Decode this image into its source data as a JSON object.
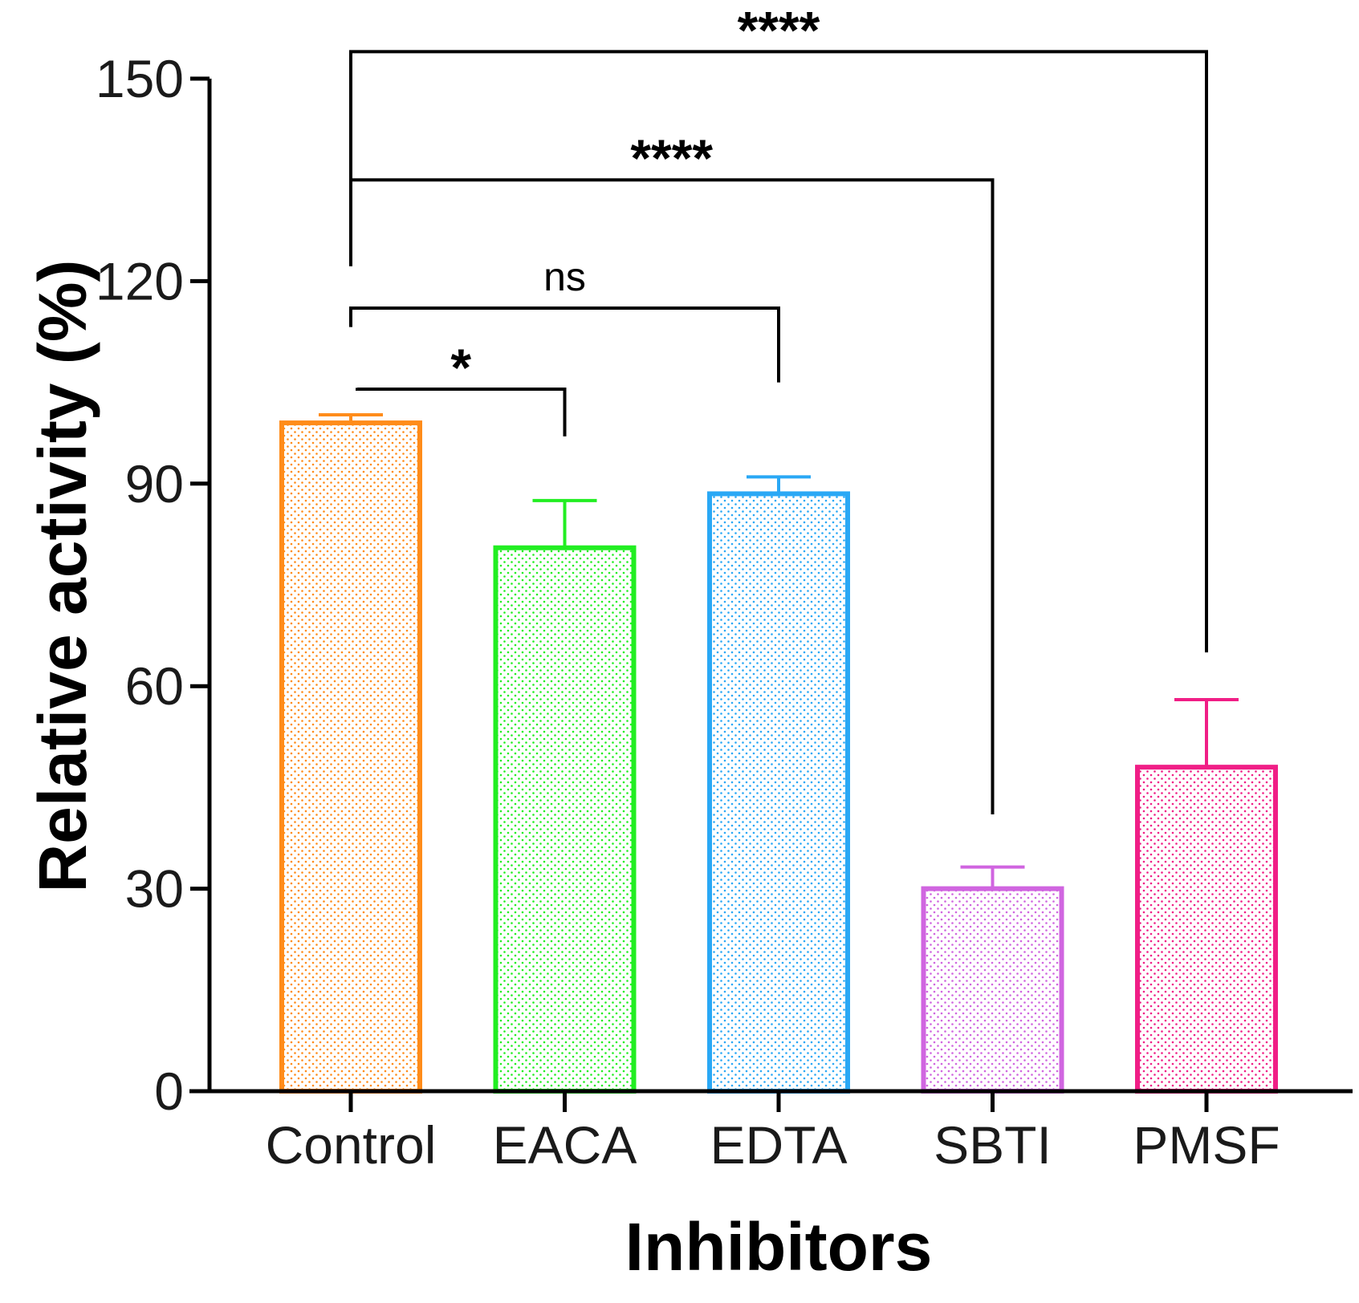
{
  "chart_data": {
    "type": "bar",
    "title": "",
    "xlabel": "Inhibitors",
    "ylabel": "Relative activity (%)",
    "ylim": [
      0,
      150
    ],
    "yticks": [
      0,
      30,
      60,
      90,
      120,
      150
    ],
    "categories": [
      "Control",
      "EACA",
      "EDTA",
      "SBTI",
      "PMSF"
    ],
    "values": [
      99,
      80.5,
      88.5,
      30,
      48
    ],
    "errors": [
      1.2,
      7,
      2.5,
      3.2,
      10
    ],
    "colors": [
      "#FF8C1A",
      "#22EE22",
      "#2AA8F5",
      "#D065E0",
      "#F01E86"
    ],
    "significance": [
      {
        "from": "Control",
        "to": "EACA",
        "label": "*",
        "bracket_y": 104,
        "end_y": 97
      },
      {
        "from": "Control",
        "to": "EDTA",
        "label": "ns",
        "bracket_y": 116,
        "end_y": 105
      },
      {
        "from": "Control",
        "to": "SBTI",
        "label": "****",
        "bracket_y": 135,
        "end_y": 41
      },
      {
        "from": "Control",
        "to": "PMSF",
        "label": "****",
        "bracket_y": 154,
        "end_y": 65
      }
    ],
    "grid": false,
    "legend": "none"
  }
}
